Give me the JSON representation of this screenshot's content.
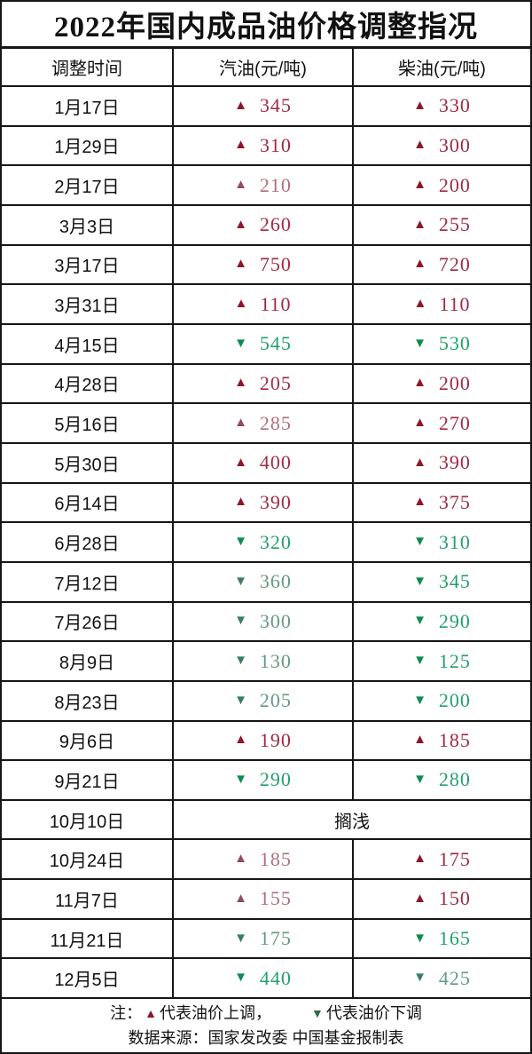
{
  "title": "2022年国内成品油价格调整指况",
  "symbols": {
    "up": "▲",
    "down": "▼"
  },
  "colors": {
    "up_tri_bright": "#8f1628",
    "up_num_bright": "#a02a42",
    "up_tri_muted": "#8e4d5b",
    "up_num_muted": "#ae6f7c",
    "down_tri_bright": "#0e8c50",
    "down_num_bright": "#22a069",
    "down_tri_muted": "#3e7d5e",
    "down_num_muted": "#649a80",
    "legend_up": "#8f1628",
    "legend_down": "#35694c",
    "grid": "#161616"
  },
  "table": {
    "headers": [
      "调整时间",
      "汽油(元/吨)",
      "柴油(元/吨)"
    ],
    "rows": [
      {
        "date": "1月17日",
        "gasoline": {
          "dir": "up",
          "value": "345",
          "shade": "bright"
        },
        "diesel": {
          "dir": "up",
          "value": "330",
          "shade": "bright"
        }
      },
      {
        "date": "1月29日",
        "gasoline": {
          "dir": "up",
          "value": "310",
          "shade": "bright"
        },
        "diesel": {
          "dir": "up",
          "value": "300",
          "shade": "bright"
        }
      },
      {
        "date": "2月17日",
        "gasoline": {
          "dir": "up",
          "value": "210",
          "shade": "muted"
        },
        "diesel": {
          "dir": "up",
          "value": "200",
          "shade": "bright"
        }
      },
      {
        "date": "3月3日",
        "gasoline": {
          "dir": "up",
          "value": "260",
          "shade": "bright"
        },
        "diesel": {
          "dir": "up",
          "value": "255",
          "shade": "bright"
        }
      },
      {
        "date": "3月17日",
        "gasoline": {
          "dir": "up",
          "value": "750",
          "shade": "bright"
        },
        "diesel": {
          "dir": "up",
          "value": "720",
          "shade": "bright"
        }
      },
      {
        "date": "3月31日",
        "gasoline": {
          "dir": "up",
          "value": "110",
          "shade": "bright"
        },
        "diesel": {
          "dir": "up",
          "value": "110",
          "shade": "bright"
        }
      },
      {
        "date": "4月15日",
        "gasoline": {
          "dir": "down",
          "value": "545",
          "shade": "bright"
        },
        "diesel": {
          "dir": "down",
          "value": "530",
          "shade": "bright"
        }
      },
      {
        "date": "4月28日",
        "gasoline": {
          "dir": "up",
          "value": "205",
          "shade": "bright"
        },
        "diesel": {
          "dir": "up",
          "value": "200",
          "shade": "bright"
        }
      },
      {
        "date": "5月16日",
        "gasoline": {
          "dir": "up",
          "value": "285",
          "shade": "muted"
        },
        "diesel": {
          "dir": "up",
          "value": "270",
          "shade": "bright"
        }
      },
      {
        "date": "5月30日",
        "gasoline": {
          "dir": "up",
          "value": "400",
          "shade": "bright"
        },
        "diesel": {
          "dir": "up",
          "value": "390",
          "shade": "bright"
        }
      },
      {
        "date": "6月14日",
        "gasoline": {
          "dir": "up",
          "value": "390",
          "shade": "bright"
        },
        "diesel": {
          "dir": "up",
          "value": "375",
          "shade": "bright"
        }
      },
      {
        "date": "6月28日",
        "gasoline": {
          "dir": "down",
          "value": "320",
          "shade": "bright"
        },
        "diesel": {
          "dir": "down",
          "value": "310",
          "shade": "bright"
        }
      },
      {
        "date": "7月12日",
        "gasoline": {
          "dir": "down",
          "value": "360",
          "shade": "muted"
        },
        "diesel": {
          "dir": "down",
          "value": "345",
          "shade": "bright"
        }
      },
      {
        "date": "7月26日",
        "gasoline": {
          "dir": "down",
          "value": "300",
          "shade": "muted"
        },
        "diesel": {
          "dir": "down",
          "value": "290",
          "shade": "bright"
        }
      },
      {
        "date": "8月9日",
        "gasoline": {
          "dir": "down",
          "value": "130",
          "shade": "muted"
        },
        "diesel": {
          "dir": "down",
          "value": "125",
          "shade": "bright"
        }
      },
      {
        "date": "8月23日",
        "gasoline": {
          "dir": "down",
          "value": "205",
          "shade": "muted"
        },
        "diesel": {
          "dir": "down",
          "value": "200",
          "shade": "bright"
        }
      },
      {
        "date": "9月6日",
        "gasoline": {
          "dir": "up",
          "value": "190",
          "shade": "bright"
        },
        "diesel": {
          "dir": "up",
          "value": "185",
          "shade": "bright"
        }
      },
      {
        "date": "9月21日",
        "gasoline": {
          "dir": "down",
          "value": "290",
          "shade": "bright"
        },
        "diesel": {
          "dir": "down",
          "value": "280",
          "shade": "bright"
        }
      },
      {
        "date": "10月10日",
        "merged_text": "搁浅"
      },
      {
        "date": "10月24日",
        "gasoline": {
          "dir": "up",
          "value": "185",
          "shade": "muted"
        },
        "diesel": {
          "dir": "up",
          "value": "175",
          "shade": "bright"
        }
      },
      {
        "date": "11月7日",
        "gasoline": {
          "dir": "up",
          "value": "155",
          "shade": "muted"
        },
        "diesel": {
          "dir": "up",
          "value": "150",
          "shade": "bright"
        }
      },
      {
        "date": "11月21日",
        "gasoline": {
          "dir": "down",
          "value": "175",
          "shade": "muted"
        },
        "diesel": {
          "dir": "down",
          "value": "165",
          "shade": "bright"
        }
      },
      {
        "date": "12月5日",
        "gasoline": {
          "dir": "down",
          "value": "440",
          "shade": "bright"
        },
        "diesel": {
          "dir": "down",
          "value": "425",
          "shade": "muted"
        }
      }
    ]
  },
  "footer": {
    "note_prefix": "注：",
    "up_legend_text": "代表油价上调，",
    "down_legend_text": "代表油价下调",
    "source_line": "数据来源：国家发改委  中国基金报制表"
  }
}
